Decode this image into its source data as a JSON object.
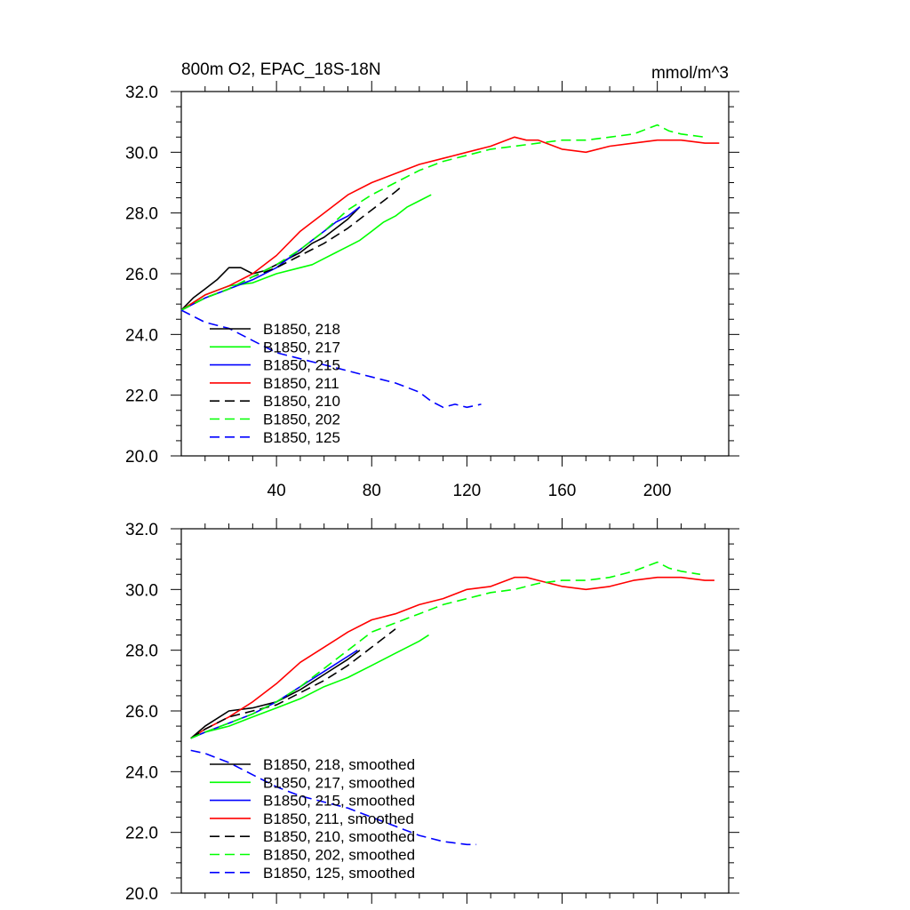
{
  "chart_data": [
    {
      "type": "line",
      "title": "800m O2, EPAC_18S-18N",
      "units": "mmol/m^3",
      "xlim": [
        0,
        230
      ],
      "ylim": [
        20,
        32
      ],
      "yticks": [
        "20.0",
        "22.0",
        "24.0",
        "26.0",
        "28.0",
        "30.0",
        "32.0"
      ],
      "xticks": [
        "40",
        "80",
        "120",
        "160",
        "200"
      ],
      "series": [
        {
          "name": "B1850, 218",
          "color": "#000000",
          "dash": "solid",
          "x": [
            0,
            5,
            10,
            15,
            20,
            25,
            30,
            35,
            40,
            45,
            50,
            55,
            60,
            65,
            70,
            75
          ],
          "y": [
            24.8,
            25.2,
            25.5,
            25.8,
            26.2,
            26.2,
            26.0,
            26.1,
            26.3,
            26.5,
            26.7,
            27.0,
            27.2,
            27.5,
            27.8,
            28.2
          ]
        },
        {
          "name": "B1850, 217",
          "color": "#00ff00",
          "dash": "solid",
          "x": [
            0,
            10,
            20,
            30,
            40,
            50,
            55,
            60,
            65,
            70,
            75,
            80,
            85,
            90,
            95,
            100,
            105
          ],
          "y": [
            24.8,
            25.3,
            25.6,
            25.7,
            26.0,
            26.2,
            26.3,
            26.5,
            26.7,
            26.9,
            27.1,
            27.4,
            27.7,
            27.9,
            28.2,
            28.4,
            28.6
          ]
        },
        {
          "name": "B1850, 215",
          "color": "#0000ff",
          "dash": "solid",
          "x": [
            0,
            10,
            20,
            30,
            40,
            45,
            50,
            55,
            60,
            65,
            70,
            75
          ],
          "y": [
            24.8,
            25.2,
            25.5,
            25.8,
            26.2,
            26.5,
            26.8,
            27.1,
            27.4,
            27.7,
            27.9,
            28.2
          ]
        },
        {
          "name": "B1850, 211",
          "color": "#ff0000",
          "dash": "solid",
          "x": [
            0,
            10,
            20,
            30,
            40,
            50,
            60,
            70,
            80,
            90,
            100,
            110,
            120,
            130,
            140,
            145,
            150,
            160,
            170,
            180,
            190,
            200,
            210,
            220,
            226
          ],
          "y": [
            24.8,
            25.3,
            25.6,
            26.0,
            26.6,
            27.4,
            28.0,
            28.6,
            29.0,
            29.3,
            29.6,
            29.8,
            30.0,
            30.2,
            30.5,
            30.4,
            30.4,
            30.1,
            30.0,
            30.2,
            30.3,
            30.4,
            30.4,
            30.3,
            30.3
          ]
        },
        {
          "name": "B1850, 210",
          "color": "#000000",
          "dash": "dashed",
          "x": [
            0,
            10,
            20,
            30,
            40,
            50,
            60,
            70,
            75,
            80,
            85,
            90,
            93
          ],
          "y": [
            24.8,
            25.2,
            25.5,
            25.9,
            26.2,
            26.6,
            27.0,
            27.5,
            27.8,
            28.1,
            28.4,
            28.7,
            28.9
          ]
        },
        {
          "name": "B1850, 202",
          "color": "#00ff00",
          "dash": "dashed",
          "x": [
            0,
            10,
            20,
            30,
            40,
            50,
            60,
            70,
            80,
            90,
            100,
            110,
            120,
            130,
            140,
            150,
            160,
            170,
            180,
            190,
            200,
            205,
            210,
            220
          ],
          "y": [
            24.8,
            25.2,
            25.5,
            25.9,
            26.3,
            26.8,
            27.4,
            28.1,
            28.6,
            29.0,
            29.4,
            29.7,
            29.9,
            30.1,
            30.2,
            30.3,
            30.4,
            30.4,
            30.5,
            30.6,
            30.9,
            30.7,
            30.6,
            30.5
          ]
        },
        {
          "name": "B1850, 125",
          "color": "#0000ff",
          "dash": "dashed",
          "x": [
            0,
            10,
            20,
            30,
            40,
            50,
            60,
            70,
            80,
            90,
            100,
            105,
            110,
            115,
            120,
            126
          ],
          "y": [
            24.8,
            24.4,
            24.2,
            23.8,
            23.4,
            23.2,
            23.0,
            22.8,
            22.6,
            22.4,
            22.1,
            21.8,
            21.6,
            21.7,
            21.6,
            21.7
          ]
        }
      ]
    },
    {
      "type": "line",
      "xlim": [
        0,
        230
      ],
      "ylim": [
        20,
        32
      ],
      "yticks": [
        "20.0",
        "22.0",
        "24.0",
        "26.0",
        "28.0",
        "30.0",
        "32.0"
      ],
      "series": [
        {
          "name": "B1850, 218, smoothed",
          "color": "#000000",
          "dash": "solid",
          "x": [
            4,
            10,
            20,
            30,
            40,
            50,
            60,
            70,
            75
          ],
          "y": [
            25.1,
            25.5,
            26.0,
            26.1,
            26.3,
            26.7,
            27.2,
            27.7,
            28.0
          ]
        },
        {
          "name": "B1850, 217, smoothed",
          "color": "#00ff00",
          "dash": "solid",
          "x": [
            4,
            10,
            20,
            30,
            40,
            50,
            60,
            70,
            80,
            90,
            100,
            104
          ],
          "y": [
            25.1,
            25.3,
            25.5,
            25.8,
            26.1,
            26.4,
            26.8,
            27.1,
            27.5,
            27.9,
            28.3,
            28.5
          ]
        },
        {
          "name": "B1850, 215, smoothed",
          "color": "#0000ff",
          "dash": "solid",
          "x": [
            4,
            10,
            20,
            30,
            40,
            50,
            60,
            70,
            74
          ],
          "y": [
            25.1,
            25.3,
            25.6,
            25.9,
            26.3,
            26.8,
            27.3,
            27.8,
            28.0
          ]
        },
        {
          "name": "B1850, 211, smoothed",
          "color": "#ff0000",
          "dash": "solid",
          "x": [
            4,
            10,
            20,
            30,
            40,
            50,
            60,
            70,
            80,
            90,
            100,
            110,
            120,
            130,
            140,
            145,
            150,
            160,
            170,
            180,
            190,
            200,
            210,
            220,
            224
          ],
          "y": [
            25.1,
            25.4,
            25.8,
            26.3,
            26.9,
            27.6,
            28.1,
            28.6,
            29.0,
            29.2,
            29.5,
            29.7,
            30.0,
            30.1,
            30.4,
            30.4,
            30.3,
            30.1,
            30.0,
            30.1,
            30.3,
            30.4,
            30.4,
            30.3,
            30.3
          ]
        },
        {
          "name": "B1850, 210, smoothed",
          "color": "#000000",
          "dash": "dashed",
          "x": [
            4,
            10,
            20,
            30,
            40,
            50,
            60,
            70,
            80,
            90
          ],
          "y": [
            25.1,
            25.4,
            25.8,
            26.0,
            26.2,
            26.6,
            27.0,
            27.5,
            28.1,
            28.7
          ]
        },
        {
          "name": "B1850, 202, smoothed",
          "color": "#00ff00",
          "dash": "dashed",
          "x": [
            4,
            10,
            20,
            30,
            40,
            50,
            60,
            70,
            80,
            90,
            100,
            110,
            120,
            130,
            140,
            150,
            160,
            170,
            180,
            190,
            200,
            205,
            210,
            218
          ],
          "y": [
            25.1,
            25.3,
            25.6,
            25.9,
            26.3,
            26.8,
            27.4,
            28.0,
            28.6,
            28.9,
            29.2,
            29.5,
            29.7,
            29.9,
            30.0,
            30.2,
            30.3,
            30.3,
            30.4,
            30.6,
            30.9,
            30.7,
            30.6,
            30.5
          ]
        },
        {
          "name": "B1850, 125, smoothed",
          "color": "#0000ff",
          "dash": "dashed",
          "x": [
            4,
            10,
            20,
            30,
            40,
            50,
            60,
            70,
            80,
            90,
            100,
            110,
            120,
            124
          ],
          "y": [
            24.7,
            24.6,
            24.3,
            23.9,
            23.5,
            23.2,
            23.0,
            22.8,
            22.5,
            22.2,
            21.9,
            21.7,
            21.6,
            21.6
          ]
        }
      ]
    }
  ]
}
